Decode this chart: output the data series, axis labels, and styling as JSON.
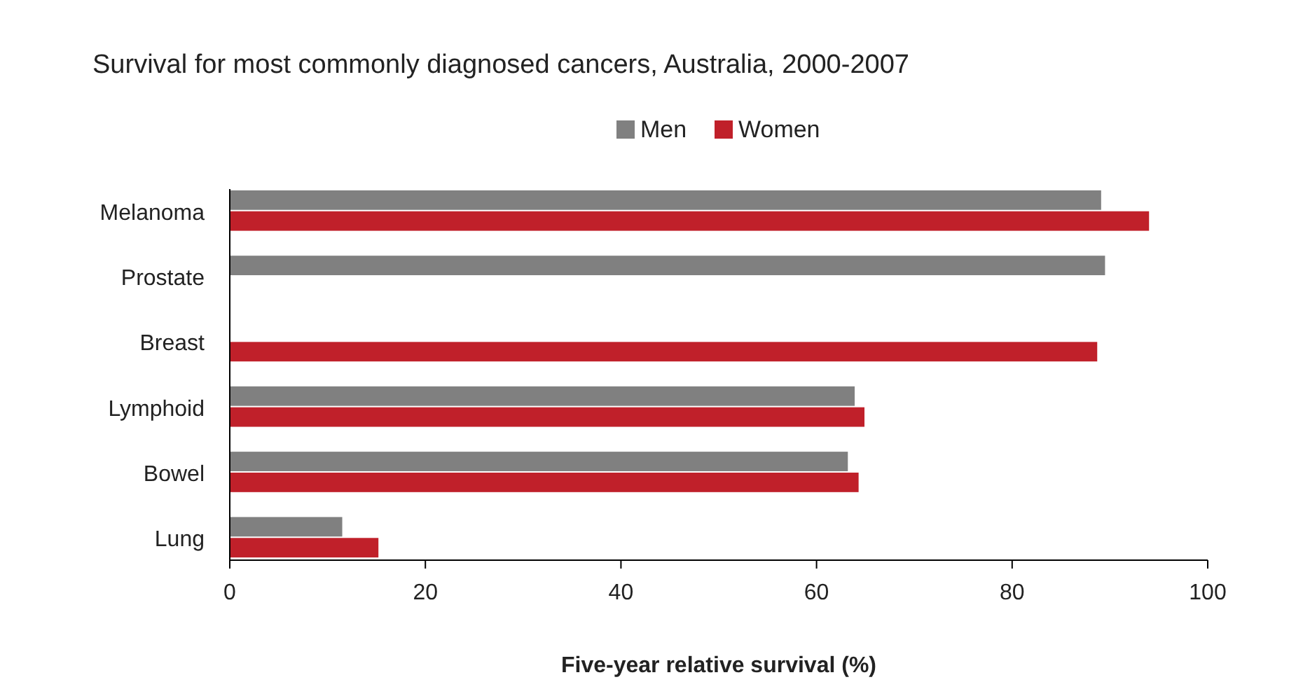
{
  "chart_data": {
    "type": "bar",
    "orientation": "horizontal",
    "title": "Survival for most commonly diagnosed cancers, Australia, 2000-2007",
    "xlabel": "Five-year relative survival (%)",
    "categories": [
      "Melanoma",
      "Prostate",
      "Breast",
      "Lymphoid",
      "Bowel",
      "Lung"
    ],
    "series": [
      {
        "name": "Men",
        "color": "#808080",
        "values": [
          89.1,
          89.5,
          null,
          63.9,
          63.2,
          11.5
        ]
      },
      {
        "name": "Women",
        "color": "#c0202a",
        "values": [
          94.0,
          null,
          88.7,
          64.9,
          64.3,
          15.2
        ]
      }
    ],
    "xlim": [
      0,
      100
    ],
    "xticks": [
      0,
      20,
      40,
      60,
      80,
      100
    ],
    "legend": "top",
    "grid": false
  }
}
